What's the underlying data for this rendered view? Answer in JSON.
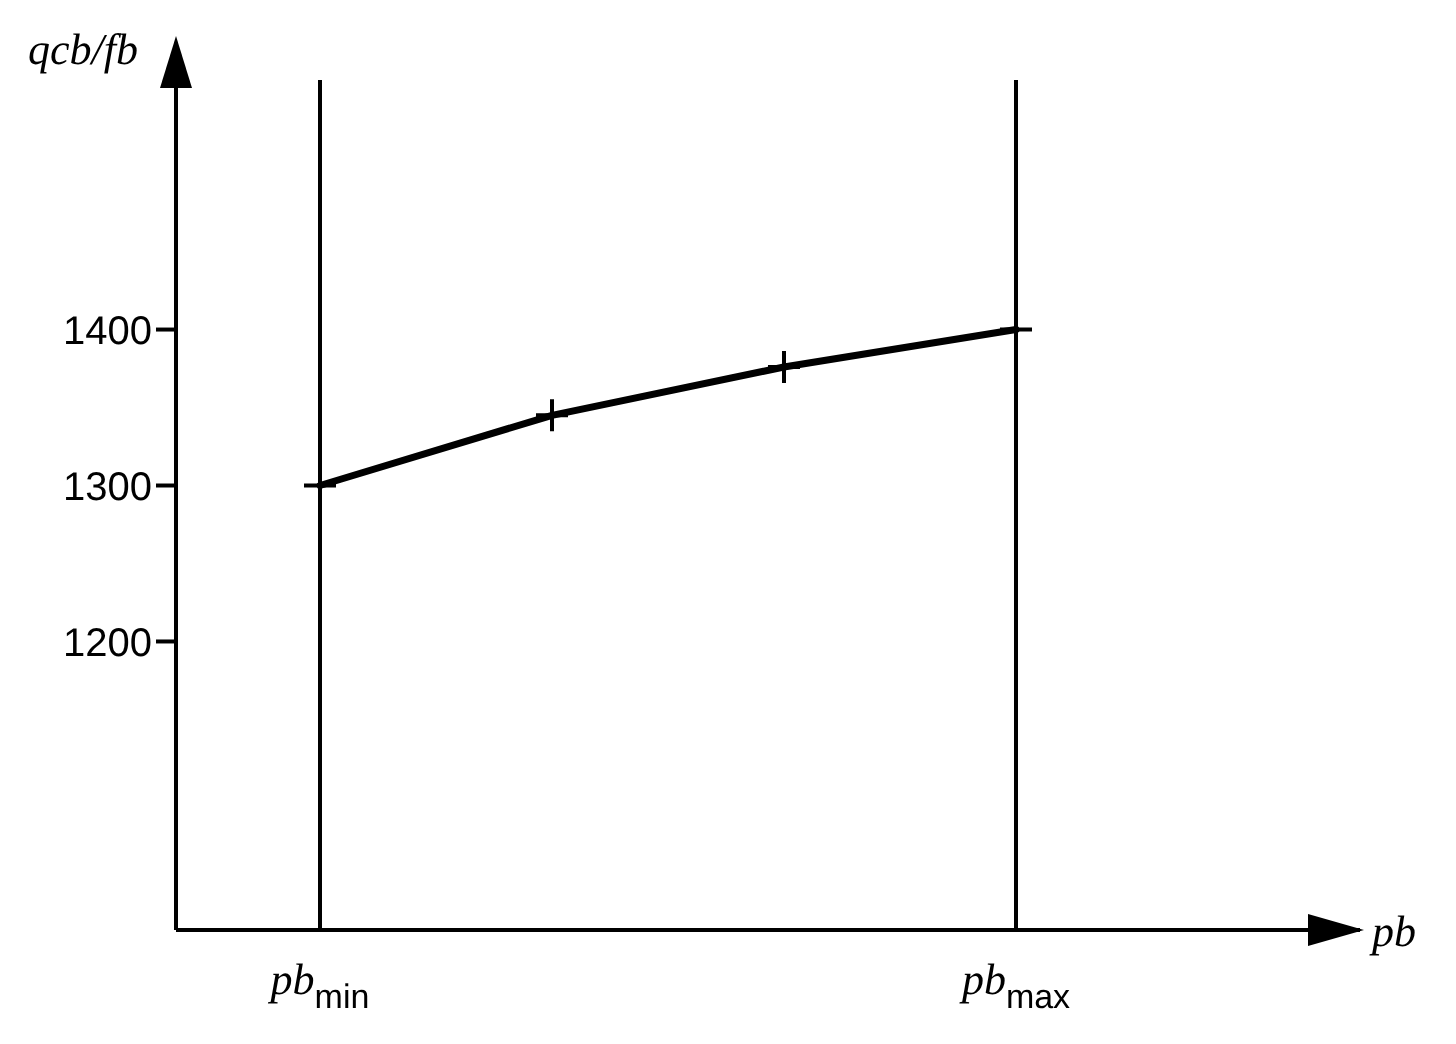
{
  "chart_data": {
    "type": "line",
    "annotations": [
      "pb"
    ],
    "ylabel": "qcb/fb",
    "categories": [
      "pb$_{min}$",
      null,
      null,
      "pb$_{max}$"
    ],
    "series": [
      {
        "color": "#000000",
        "values": [
          1300,
          1345,
          1376,
          1400
        ]
      }
    ],
    "ylim": [
      1015,
      1560
    ],
    "yticks": [
      1200,
      1300,
      1400
    ],
    "ref_lines": [
      {
        "axis": "x",
        "value": "pb$_{min}$",
        "color": "#000000"
      },
      {
        "axis": "x",
        "value": "pb$_{max}$",
        "color": "#000000"
      }
    ],
    "marker": "cross",
    "line_style": "solid",
    "grid": false,
    "legend": false
  }
}
